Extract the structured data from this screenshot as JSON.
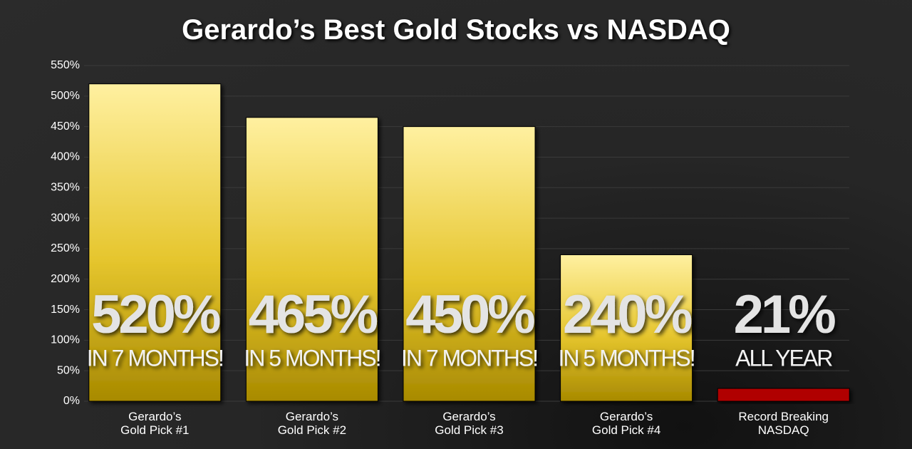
{
  "chart_data": {
    "type": "bar",
    "title": "Gerardo’s Best Gold Stocks vs NASDAQ",
    "categories": [
      "Gerardo’s\nGold Pick #1",
      "Gerardo’s\nGold Pick #2",
      "Gerardo’s\nGold Pick #3",
      "Gerardo’s\nGold Pick #4",
      "Record Breaking\nNASDAQ"
    ],
    "values": [
      520,
      465,
      450,
      240,
      21
    ],
    "value_labels": [
      "520%",
      "465%",
      "450%",
      "240%",
      "21%"
    ],
    "annotations": [
      "IN 7 MONTHS!",
      "IN 5 MONTHS!",
      "IN 7 MONTHS!",
      "IN 5 MONTHS!",
      "ALL YEAR"
    ],
    "colors": [
      "#e9cc3c",
      "#e9cc3c",
      "#e9cc3c",
      "#e9cc3c",
      "#b00000"
    ],
    "ylim": [
      0,
      550
    ],
    "yticks": [
      {
        "value": 0,
        "label": "0%"
      },
      {
        "value": 50,
        "label": "50%"
      },
      {
        "value": 100,
        "label": "100%"
      },
      {
        "value": 150,
        "label": "150%"
      },
      {
        "value": 200,
        "label": "200%"
      },
      {
        "value": 250,
        "label": "250%"
      },
      {
        "value": 300,
        "label": "300%"
      },
      {
        "value": 350,
        "label": "350%"
      },
      {
        "value": 400,
        "label": "400%"
      },
      {
        "value": 450,
        "label": "450%"
      },
      {
        "value": 500,
        "label": "500%"
      },
      {
        "value": 550,
        "label": "550%"
      }
    ],
    "grid": true
  }
}
